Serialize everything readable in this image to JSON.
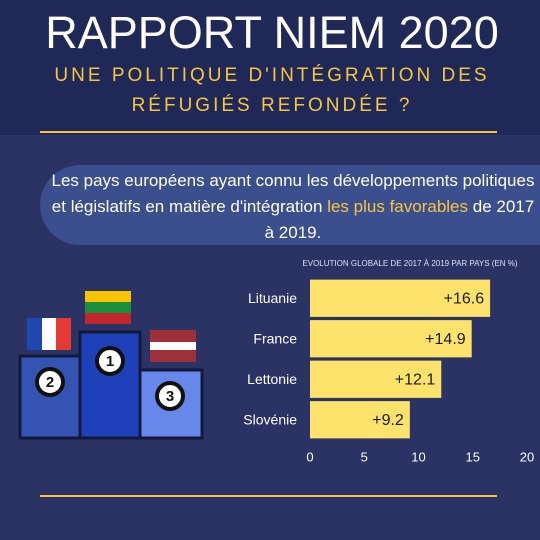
{
  "header": {
    "title": "RAPPORT NIEM 2020",
    "subtitle": [
      "UNE POLITIQUE D'INTÉGRATION DES",
      "RÉFUGIÉS REFONDÉE ?"
    ]
  },
  "intro": {
    "parts": [
      "Les pays européens ayant connu les développements politiques et législatifs en matière d'intégration ",
      "les plus favorables",
      " de 2017 à 2019."
    ]
  },
  "podium": {
    "ranks": [
      "1",
      "2",
      "3"
    ]
  },
  "chart_data": {
    "type": "bar",
    "orientation": "horizontal",
    "title": "EVOLUTION GLOBALE DE 2017 À 2019 PAR PAYS (EN %)",
    "categories": [
      "Lituanie",
      "France",
      "Lettonie",
      "Slovénie"
    ],
    "values": [
      16.6,
      14.9,
      12.1,
      9.2
    ],
    "value_labels": [
      "+16.6",
      "+14.9",
      "+12.1",
      "+9.2"
    ],
    "color": "#fde36b",
    "xlim": [
      0,
      20
    ],
    "xticks": [
      0,
      5,
      10,
      15,
      20
    ],
    "grid": false
  }
}
